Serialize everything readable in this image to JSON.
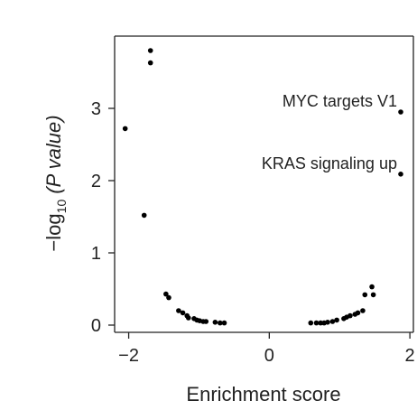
{
  "chart_data": {
    "type": "scatter",
    "xlabel": "Enrichment score",
    "ylabel": {
      "prefix": "−log",
      "subscript": "10",
      "suffix": " (P value)"
    },
    "xlim": [
      -2.2,
      2.05
    ],
    "ylim": [
      -0.1,
      4.0
    ],
    "xticks": [
      -2,
      0,
      2
    ],
    "xtick_labels": [
      "−2",
      "0",
      "2"
    ],
    "yticks": [
      0,
      1,
      2,
      3
    ],
    "ytick_labels": [
      "0",
      "1",
      "2",
      "3"
    ],
    "grid": false,
    "legend": "none",
    "colors": {
      "points": "#000000",
      "axis": "#222222"
    },
    "points": [
      {
        "x": -1.69,
        "y": 3.8
      },
      {
        "x": -1.69,
        "y": 3.63
      },
      {
        "x": -2.05,
        "y": 2.72
      },
      {
        "x": -1.78,
        "y": 1.52
      },
      {
        "x": -1.47,
        "y": 0.43
      },
      {
        "x": -1.43,
        "y": 0.38
      },
      {
        "x": -1.29,
        "y": 0.2
      },
      {
        "x": -1.23,
        "y": 0.17
      },
      {
        "x": -1.17,
        "y": 0.13
      },
      {
        "x": -1.15,
        "y": 0.1
      },
      {
        "x": -1.07,
        "y": 0.09
      },
      {
        "x": -1.03,
        "y": 0.07
      },
      {
        "x": -0.99,
        "y": 0.06
      },
      {
        "x": -0.94,
        "y": 0.05
      },
      {
        "x": -0.9,
        "y": 0.05
      },
      {
        "x": -0.77,
        "y": 0.04
      },
      {
        "x": -0.7,
        "y": 0.03
      },
      {
        "x": -0.64,
        "y": 0.03
      },
      {
        "x": 0.59,
        "y": 0.03
      },
      {
        "x": 0.67,
        "y": 0.03
      },
      {
        "x": 0.73,
        "y": 0.03
      },
      {
        "x": 0.78,
        "y": 0.03
      },
      {
        "x": 0.83,
        "y": 0.04
      },
      {
        "x": 0.9,
        "y": 0.05
      },
      {
        "x": 0.96,
        "y": 0.07
      },
      {
        "x": 1.06,
        "y": 0.09
      },
      {
        "x": 1.1,
        "y": 0.11
      },
      {
        "x": 1.15,
        "y": 0.13
      },
      {
        "x": 1.22,
        "y": 0.15
      },
      {
        "x": 1.26,
        "y": 0.17
      },
      {
        "x": 1.33,
        "y": 0.2
      },
      {
        "x": 1.36,
        "y": 0.42
      },
      {
        "x": 1.46,
        "y": 0.53
      },
      {
        "x": 1.48,
        "y": 0.42
      },
      {
        "x": 1.87,
        "y": 2.95,
        "label": "MYC targets V1"
      },
      {
        "x": 1.87,
        "y": 2.09,
        "label": "KRAS signaling up"
      }
    ]
  }
}
